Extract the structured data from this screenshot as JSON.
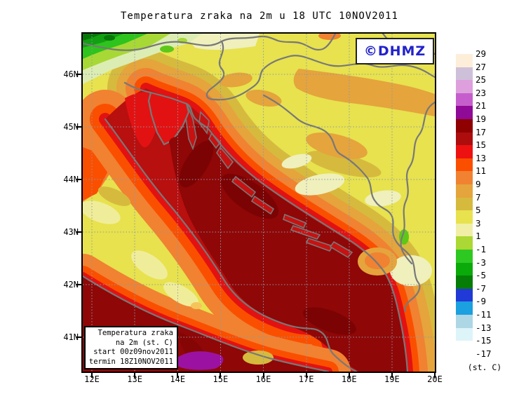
{
  "title": "Temperatura zraka na 2m u 18 UTC 10NOV2011",
  "watermark": {
    "label": "©DHMZ",
    "color": "#2222cc"
  },
  "map": {
    "lat_labels": [
      "46N",
      "45N",
      "44N",
      "43N",
      "42N",
      "41N"
    ],
    "lon_labels": [
      "12E",
      "13E",
      "14E",
      "15E",
      "16E",
      "17E",
      "18E",
      "19E",
      "20E"
    ],
    "palette": {
      "base_yellow": "#e7e24e",
      "gold": "#d6ba3e",
      "amber": "#e5a43c",
      "orange": "#f08232",
      "orange_red": "#fb4f00",
      "red": "#e21212",
      "sea_red": "#b80f0f",
      "dark_red": "#8f0707",
      "deep_red": "#7c0303",
      "maroon": "#850505",
      "purple": "#9b12a2",
      "pale_yellow": "#f0ed9a",
      "pale_cream": "#eff0bc",
      "pale_green": "#dcedb4",
      "yellow_green": "#a8d835",
      "bright_green": "#2fc31d",
      "green": "#12a012",
      "dark_green": "#077807",
      "green_spot": "#5ec818",
      "island_red": "#c81111",
      "peach": "#f5c55a",
      "coast_grey": "#787878",
      "grid_grey": "#8e99a8"
    }
  },
  "info_box": {
    "lines": [
      "Temperatura zraka",
      "na 2m (st. C)",
      "start 00z09nov2011",
      "termin 18Z10NOV2011"
    ]
  },
  "colorbar": {
    "unit_label": "(st. C)",
    "levels": [
      "29",
      "27",
      "25",
      "23",
      "21",
      "19",
      "17",
      "15",
      "13",
      "11",
      "9",
      "7",
      "5",
      "3",
      "1",
      "-1",
      "-3",
      "-5",
      "-7",
      "-9",
      "-11",
      "-13",
      "-15",
      "-17"
    ],
    "colors": [
      "#fdeeda",
      "#cfc0da",
      "#dda0dd",
      "#c55ecc",
      "#8f0a96",
      "#8f0000",
      "#ad0d0d",
      "#ee1111",
      "#fb4f00",
      "#f08232",
      "#e5a43c",
      "#d6ba3e",
      "#e7e24e",
      "#f1efa6",
      "#abd834",
      "#2ec822",
      "#0aaa0a",
      "#067d06",
      "#2139d6",
      "#1ba0e0",
      "#aed7e6",
      "#ddf4f9",
      "#ffffff"
    ]
  }
}
